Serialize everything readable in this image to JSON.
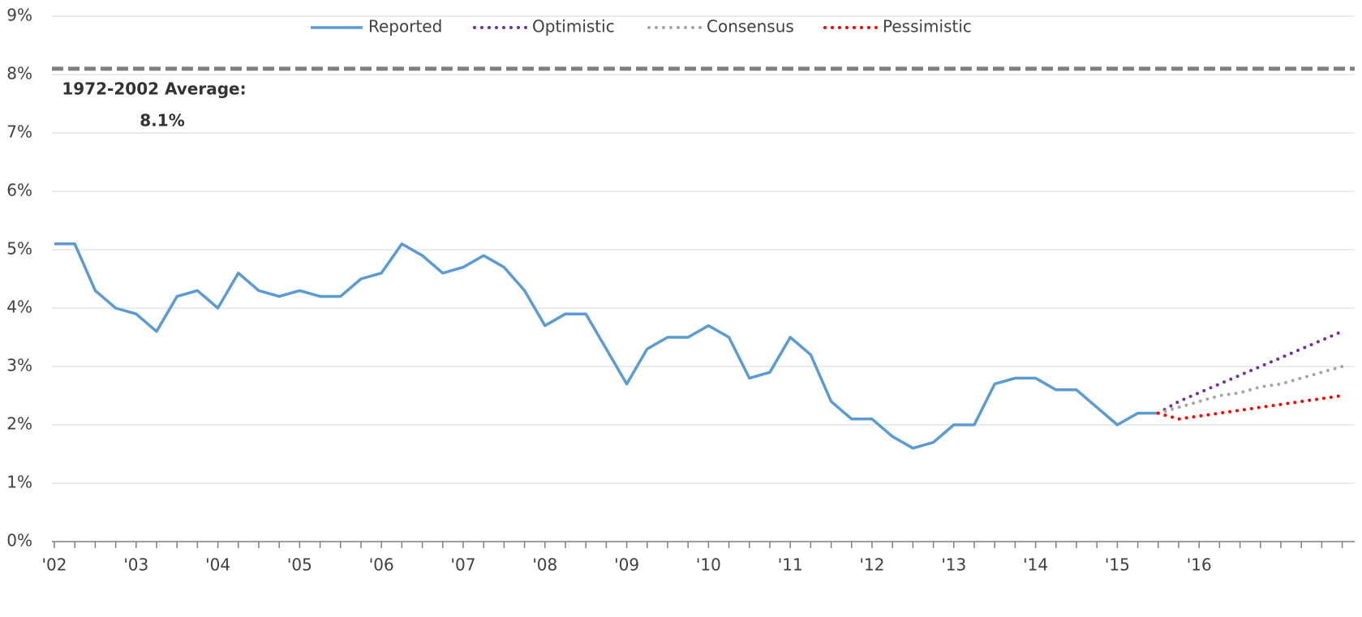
{
  "chart_data": {
    "type": "line",
    "categories": [
      "'02",
      null,
      null,
      null,
      "'03",
      null,
      null,
      null,
      "'04",
      null,
      null,
      null,
      "'05",
      null,
      null,
      null,
      "'06",
      null,
      null,
      null,
      "'07",
      null,
      null,
      null,
      "'08",
      null,
      null,
      null,
      "'09",
      null,
      null,
      null,
      "'10",
      null,
      null,
      null,
      "'11",
      null,
      null,
      null,
      "'12",
      null,
      null,
      null,
      "'13",
      null,
      null,
      null,
      "'14",
      null,
      null,
      null,
      "'15",
      null,
      null,
      null,
      "'16",
      null,
      null,
      null,
      null,
      null,
      null,
      null
    ],
    "series": [
      {
        "name": "Reported",
        "color": "#5b9bd5",
        "style": "solid",
        "values": [
          5.1,
          5.1,
          4.3,
          4.0,
          3.9,
          3.6,
          4.2,
          4.3,
          4.0,
          4.6,
          4.3,
          4.2,
          4.3,
          4.2,
          4.2,
          4.5,
          4.6,
          5.1,
          4.9,
          4.6,
          4.7,
          4.9,
          4.7,
          4.3,
          3.7,
          3.9,
          3.9,
          3.3,
          2.7,
          3.3,
          3.5,
          3.5,
          3.7,
          3.5,
          2.8,
          2.9,
          3.5,
          3.2,
          2.4,
          2.1,
          2.1,
          1.8,
          1.6,
          1.7,
          2.0,
          2.0,
          2.7,
          2.8,
          2.8,
          2.6,
          2.6,
          2.3,
          2.0,
          2.2,
          2.2,
          null,
          null,
          null,
          null,
          null,
          null,
          null,
          null,
          null
        ]
      },
      {
        "name": "Optimistic",
        "color": "#7030a0",
        "style": "dotted",
        "values": [
          null,
          null,
          null,
          null,
          null,
          null,
          null,
          null,
          null,
          null,
          null,
          null,
          null,
          null,
          null,
          null,
          null,
          null,
          null,
          null,
          null,
          null,
          null,
          null,
          null,
          null,
          null,
          null,
          null,
          null,
          null,
          null,
          null,
          null,
          null,
          null,
          null,
          null,
          null,
          null,
          null,
          null,
          null,
          null,
          null,
          null,
          null,
          null,
          null,
          null,
          null,
          null,
          null,
          null,
          2.2,
          2.4,
          2.55,
          2.7,
          2.85,
          3.0,
          3.15,
          3.3,
          3.45,
          3.6
        ]
      },
      {
        "name": "Consensus",
        "color": "#a6a6a6",
        "style": "dotted",
        "values": [
          null,
          null,
          null,
          null,
          null,
          null,
          null,
          null,
          null,
          null,
          null,
          null,
          null,
          null,
          null,
          null,
          null,
          null,
          null,
          null,
          null,
          null,
          null,
          null,
          null,
          null,
          null,
          null,
          null,
          null,
          null,
          null,
          null,
          null,
          null,
          null,
          null,
          null,
          null,
          null,
          null,
          null,
          null,
          null,
          null,
          null,
          null,
          null,
          null,
          null,
          null,
          null,
          null,
          null,
          2.2,
          2.3,
          2.4,
          2.5,
          2.55,
          2.65,
          2.7,
          2.8,
          2.9,
          3.0
        ]
      },
      {
        "name": "Pessimistic",
        "color": "#ff0000",
        "style": "dotted",
        "values": [
          null,
          null,
          null,
          null,
          null,
          null,
          null,
          null,
          null,
          null,
          null,
          null,
          null,
          null,
          null,
          null,
          null,
          null,
          null,
          null,
          null,
          null,
          null,
          null,
          null,
          null,
          null,
          null,
          null,
          null,
          null,
          null,
          null,
          null,
          null,
          null,
          null,
          null,
          null,
          null,
          null,
          null,
          null,
          null,
          null,
          null,
          null,
          null,
          null,
          null,
          null,
          null,
          null,
          null,
          2.2,
          2.1,
          2.15,
          2.2,
          2.25,
          2.3,
          2.35,
          2.4,
          2.45,
          2.5
        ]
      }
    ],
    "reference": {
      "value": 8.1,
      "label": "1972-2002 Average:",
      "value_label": "8.1%",
      "color": "#808080"
    },
    "ylim": [
      0,
      9
    ],
    "yticks": [
      {
        "value": 0,
        "label": "0%"
      },
      {
        "value": 1,
        "label": "1%"
      },
      {
        "value": 2,
        "label": "2%"
      },
      {
        "value": 3,
        "label": "3%"
      },
      {
        "value": 4,
        "label": "4%"
      },
      {
        "value": 5,
        "label": "5%"
      },
      {
        "value": 6,
        "label": "6%"
      },
      {
        "value": 7,
        "label": "7%"
      },
      {
        "value": 8,
        "label": "8%"
      },
      {
        "value": 9,
        "label": "9%"
      }
    ],
    "grid": true,
    "legend": "top"
  }
}
